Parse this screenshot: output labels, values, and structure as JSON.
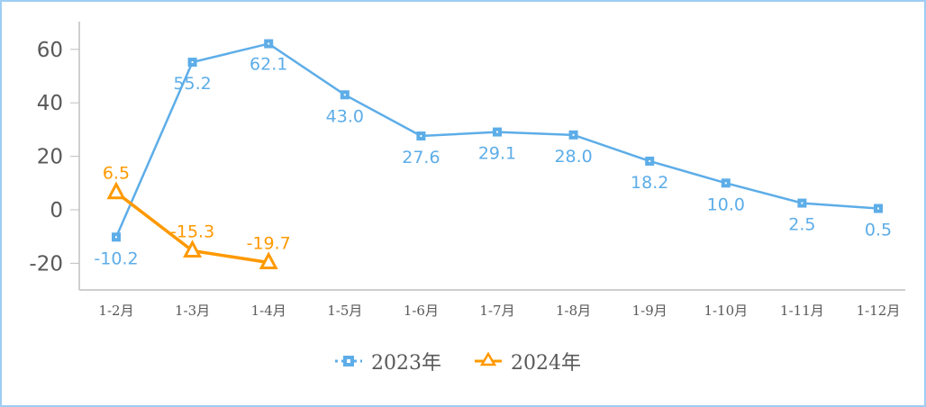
{
  "chart_data": {
    "type": "line",
    "title": "",
    "xlabel": "",
    "ylabel": "",
    "categories": [
      "1-2月",
      "1-3月",
      "1-4月",
      "1-5月",
      "1-6月",
      "1-7月",
      "1-8月",
      "1-9月",
      "1-10月",
      "1-11月",
      "1-12月"
    ],
    "series": [
      {
        "name": "2023年",
        "color": "#5dade8",
        "marker": "square",
        "values": [
          -10.2,
          55.2,
          62.1,
          43.0,
          27.6,
          29.1,
          28.0,
          18.2,
          10.0,
          2.5,
          0.5
        ]
      },
      {
        "name": "2024年",
        "color": "#ff9900",
        "marker": "triangle",
        "values": [
          6.5,
          -15.3,
          -19.7,
          null,
          null,
          null,
          null,
          null,
          null,
          null,
          null
        ]
      }
    ],
    "yticks": [
      60,
      40,
      20,
      0,
      -20
    ],
    "ylim": [
      -30,
      70
    ],
    "grid": false,
    "legend_position": "bottom"
  },
  "colors": {
    "border": "#9fcdf3",
    "axis": "#bfbfbf",
    "tick_text": "#595959"
  }
}
